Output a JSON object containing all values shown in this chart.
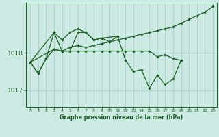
{
  "background_color": "#cce9e4",
  "grid_color": "#aad0ca",
  "line_color": "#1a5e20",
  "marker_color": "#1a5e20",
  "title": "Graphe pression niveau de la mer (hPa)",
  "ylim": [
    1016.55,
    1019.35
  ],
  "xlim": [
    -0.5,
    23.5
  ],
  "yticks": [
    1017,
    1018
  ],
  "xticks": [
    0,
    1,
    2,
    3,
    4,
    5,
    6,
    7,
    8,
    9,
    10,
    11,
    12,
    13,
    14,
    15,
    16,
    17,
    18,
    19,
    20,
    21,
    22,
    23
  ],
  "series": [
    {
      "x": [
        0,
        1,
        2,
        3,
        4,
        5,
        6,
        7,
        8,
        9,
        10,
        11,
        12,
        13,
        14,
        15,
        16,
        17,
        18,
        19
      ],
      "y": [
        1017.75,
        1017.45,
        1017.85,
        1018.55,
        1018.35,
        1018.55,
        1018.65,
        1018.55,
        1018.35,
        1018.4,
        1018.3,
        1018.45,
        1017.8,
        1017.5,
        1017.55,
        1017.05,
        1017.4,
        1017.15,
        1017.3,
        1017.8
      ]
    },
    {
      "x": [
        0,
        3,
        4,
        5,
        6,
        7,
        8,
        9,
        11
      ],
      "y": [
        1017.75,
        1018.55,
        1018.05,
        1018.05,
        1018.55,
        1018.55,
        1018.35,
        1018.4,
        1018.45
      ]
    },
    {
      "x": [
        0,
        1,
        2,
        3,
        4,
        5,
        6,
        7,
        8,
        9,
        10,
        11,
        12,
        13,
        14,
        15,
        16,
        17,
        18,
        19,
        20,
        21,
        22,
        23
      ],
      "y": [
        1017.75,
        1017.45,
        1017.85,
        1018.1,
        1018.05,
        1018.15,
        1018.2,
        1018.15,
        1018.2,
        1018.25,
        1018.3,
        1018.35,
        1018.4,
        1018.45,
        1018.5,
        1018.55,
        1018.6,
        1018.65,
        1018.7,
        1018.8,
        1018.9,
        1019.0,
        1019.1,
        1019.25
      ]
    },
    {
      "x": [
        0,
        3,
        4,
        5,
        6,
        7,
        8,
        9,
        10,
        11,
        12,
        13,
        14,
        15,
        16,
        17,
        18,
        19
      ],
      "y": [
        1017.75,
        1018.1,
        1018.05,
        1018.05,
        1018.05,
        1018.05,
        1018.05,
        1018.05,
        1018.05,
        1018.05,
        1018.05,
        1018.05,
        1018.05,
        1018.05,
        1017.9,
        1017.95,
        1017.85,
        1017.8
      ]
    }
  ]
}
